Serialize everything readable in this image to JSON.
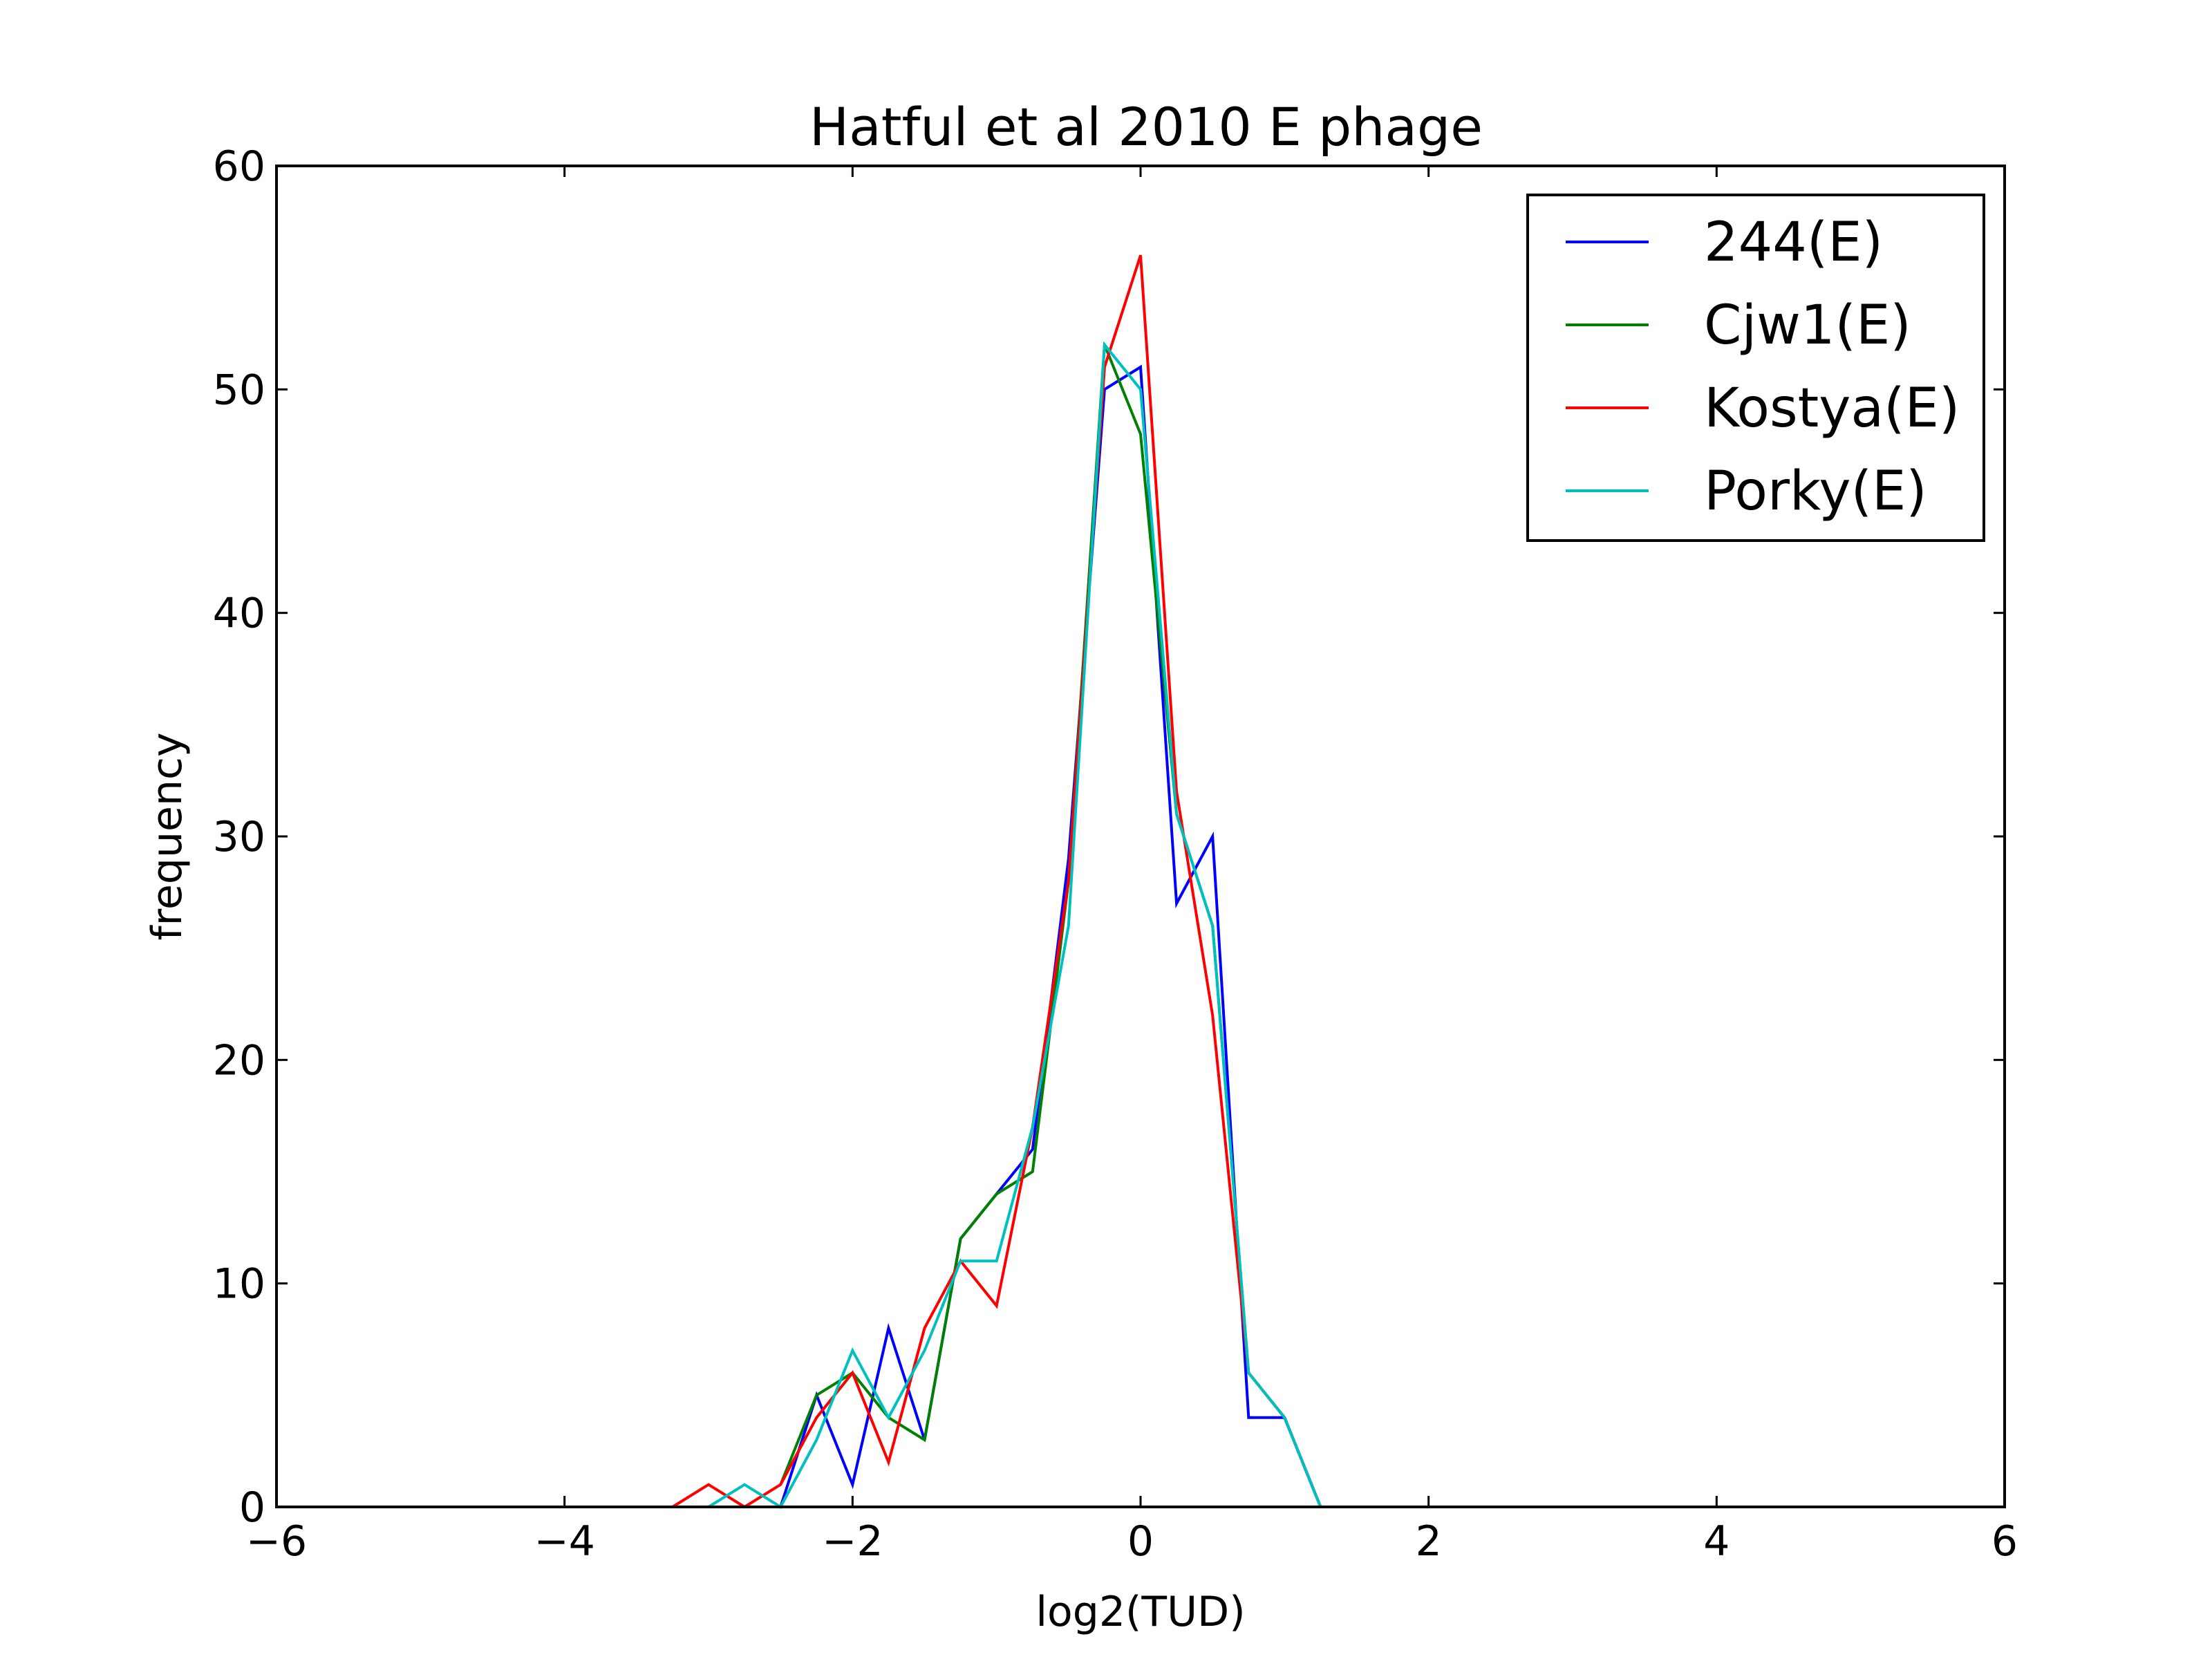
{
  "chart_data": {
    "type": "line",
    "title": "Hatful et al 2010 E phage",
    "xlabel": "log2(TUD)",
    "ylabel": "frequency",
    "xlim": [
      -6,
      6
    ],
    "ylim": [
      0,
      60
    ],
    "xticks": [
      -6,
      -4,
      -2,
      0,
      2,
      4,
      6
    ],
    "xtick_labels": [
      "−6",
      "−4",
      "−2",
      "0",
      "2",
      "4",
      "6"
    ],
    "yticks": [
      0,
      10,
      20,
      30,
      40,
      50,
      60
    ],
    "ytick_labels": [
      "0",
      "10",
      "20",
      "30",
      "40",
      "50",
      "60"
    ],
    "grid": false,
    "legend_position": "top-right",
    "series": [
      {
        "name": "244(E)",
        "color": "#0000ff",
        "x": [
          -2.5,
          -2.25,
          -2.0,
          -1.75,
          -1.5,
          -1.25,
          -1.0,
          -0.75,
          -0.5,
          -0.25,
          0.0,
          0.25,
          0.5,
          0.75,
          1.0,
          1.25
        ],
        "y": [
          0,
          5,
          1,
          8,
          3,
          12,
          14,
          16,
          29,
          50,
          51,
          27,
          30,
          4,
          4,
          0
        ]
      },
      {
        "name": "Cjw1(E)",
        "color": "#008000",
        "x": [
          -2.5,
          -2.25,
          -2.0,
          -1.75,
          -1.5,
          -1.25,
          -1.0,
          -0.75,
          -0.5,
          -0.25,
          0.0,
          0.25,
          0.5,
          0.75,
          1.0,
          1.25
        ],
        "y": [
          1,
          5,
          6,
          4,
          3,
          12,
          14,
          15,
          28,
          52,
          48,
          31,
          26,
          6,
          4,
          0
        ]
      },
      {
        "name": "Kostya(E)",
        "color": "#ff0000",
        "x": [
          -3.25,
          -3.0,
          -2.75,
          -2.5,
          -2.25,
          -2.0,
          -1.75,
          -1.5,
          -1.25,
          -1.0,
          -0.75,
          -0.5,
          -0.25,
          0.0,
          0.25,
          0.5,
          0.75,
          1.0,
          1.25
        ],
        "y": [
          0,
          1,
          0,
          1,
          4,
          6,
          2,
          8,
          11,
          9,
          17,
          28,
          51,
          56,
          32,
          22,
          6,
          4,
          0
        ]
      },
      {
        "name": "Porky(E)",
        "color": "#00bfbf",
        "x": [
          -3.0,
          -2.75,
          -2.5,
          -2.25,
          -2.0,
          -1.75,
          -1.5,
          -1.25,
          -1.0,
          -0.75,
          -0.5,
          -0.25,
          0.0,
          0.25,
          0.5,
          0.75,
          1.0,
          1.25
        ],
        "y": [
          0,
          1,
          0,
          3,
          7,
          4,
          7,
          11,
          11,
          17,
          26,
          52,
          50,
          31,
          26,
          6,
          4,
          0
        ]
      }
    ]
  }
}
